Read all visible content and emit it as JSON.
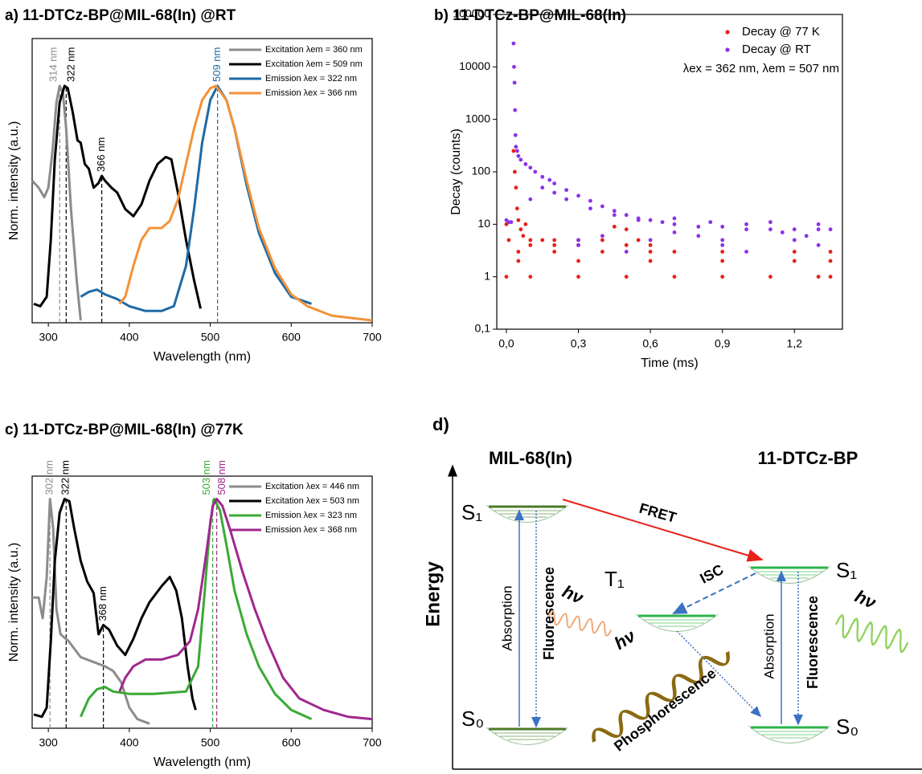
{
  "chart_data": [
    {
      "type": "line",
      "title": "a) 11-DTCz-BP@MIL-68(In) @RT",
      "x_label": "Wavelength (nm)",
      "y_label": "Norm. intensity (a.u.)",
      "xlim": [
        280,
        700
      ],
      "xticks": [
        300,
        400,
        500,
        600,
        700
      ],
      "ylim": [
        0,
        1.2
      ],
      "legend": "upper right",
      "series": [
        {
          "name": "Excitation λem = 360 nm",
          "color": "#8c8c8c",
          "x": [
            280,
            288,
            295,
            300,
            305,
            310,
            314,
            318,
            322,
            328,
            335,
            340
          ],
          "values": [
            0.6,
            0.57,
            0.53,
            0.57,
            0.72,
            0.93,
            1.0,
            0.97,
            0.82,
            0.48,
            0.18,
            0.01
          ]
        },
        {
          "name": "Excitation λem = 509 nm",
          "color": "#000000",
          "x": [
            282,
            290,
            298,
            303,
            308,
            314,
            320,
            324,
            330,
            336,
            340,
            345,
            350,
            356,
            362,
            366,
            370,
            378,
            385,
            395,
            405,
            415,
            425,
            435,
            445,
            452,
            460,
            470,
            480,
            488
          ],
          "values": [
            0.08,
            0.07,
            0.11,
            0.35,
            0.69,
            0.93,
            1.0,
            0.99,
            0.89,
            0.77,
            0.76,
            0.67,
            0.65,
            0.57,
            0.59,
            0.62,
            0.6,
            0.57,
            0.55,
            0.48,
            0.45,
            0.5,
            0.6,
            0.67,
            0.7,
            0.69,
            0.55,
            0.35,
            0.18,
            0.06
          ]
        },
        {
          "name": "Emission λex = 322 nm",
          "color": "#1f6aa5",
          "x": [
            340,
            350,
            360,
            370,
            385,
            400,
            420,
            440,
            455,
            470,
            480,
            490,
            500,
            509,
            520,
            530,
            545,
            560,
            580,
            600,
            625
          ],
          "values": [
            0.11,
            0.13,
            0.14,
            0.12,
            0.1,
            0.07,
            0.05,
            0.05,
            0.07,
            0.24,
            0.48,
            0.76,
            0.94,
            1.0,
            0.94,
            0.82,
            0.58,
            0.38,
            0.21,
            0.11,
            0.08
          ]
        },
        {
          "name": "Emission λex = 366 nm",
          "color": "#f39237",
          "x": [
            388,
            395,
            405,
            415,
            425,
            440,
            450,
            460,
            470,
            480,
            490,
            500,
            507,
            520,
            530,
            545,
            560,
            580,
            600,
            620,
            650,
            700
          ],
          "values": [
            0.08,
            0.11,
            0.24,
            0.35,
            0.4,
            0.4,
            0.43,
            0.52,
            0.67,
            0.82,
            0.94,
            0.99,
            1.0,
            0.94,
            0.82,
            0.6,
            0.4,
            0.23,
            0.12,
            0.07,
            0.03,
            0.01
          ]
        }
      ],
      "annotations": [
        {
          "text": "314 nm",
          "x": 314,
          "y": 1.0,
          "color": "#8c8c8c"
        },
        {
          "text": "322 nm",
          "x": 322,
          "y": 1.0,
          "color": "#000000"
        },
        {
          "text": "366 nm",
          "x": 366,
          "y": 0.62,
          "color": "#000000"
        },
        {
          "text": "509 nm",
          "x": 509,
          "y": 1.0,
          "color": "#1f6aa5"
        }
      ]
    },
    {
      "type": "scatter",
      "title": "b) 11-DTCz-BP@MIL-68(In)",
      "x_label": "Time (ms)",
      "y_label": "Decay (counts)",
      "xlim": [
        -0.04,
        1.4
      ],
      "xticks": [
        {
          "value": 0,
          "label": "0,0"
        },
        {
          "value": 0.3,
          "label": "0,3"
        },
        {
          "value": 0.6,
          "label": "0,6"
        },
        {
          "value": 0.9,
          "label": "0,9"
        },
        {
          "value": 1.2,
          "label": "1,2"
        }
      ],
      "ylim": [
        0.1,
        100000
      ],
      "yscale": "log",
      "yticks": [
        {
          "value": 0.1,
          "label": "0,1"
        },
        1,
        10,
        100,
        1000,
        10000,
        100000
      ],
      "legend": "upper right",
      "note": "λex = 362 nm, λem = 507 nm",
      "series": [
        {
          "name": "Decay @ 77 K",
          "color": "#e8201a",
          "x": [
            0.03,
            0.035,
            0.04,
            0.045,
            0.05,
            0.06,
            0.07,
            0.08,
            0.1,
            0.15,
            0.2,
            0.3,
            0.4,
            0.45,
            0.5,
            0.55,
            0.6,
            0.1,
            0.2,
            0.3,
            0.5,
            0.7,
            0.05,
            0.2,
            0.4,
            0.6,
            0.9,
            1.2,
            1.35,
            0.05,
            0.3,
            0.6,
            0.9,
            1.2,
            1.35,
            0.0,
            0.1,
            0.3,
            0.5,
            0.7,
            0.9,
            1.1,
            1.3,
            1.35,
            0.0,
            0.01
          ],
          "values": [
            250,
            100,
            50,
            20,
            12,
            8,
            6,
            10,
            5,
            5,
            5,
            5,
            5,
            9,
            8,
            5,
            4,
            4,
            4,
            4,
            4,
            3,
            3,
            3,
            3,
            3,
            3,
            3,
            3,
            2,
            2,
            2,
            2,
            2,
            2,
            1,
            1,
            1,
            1,
            1,
            1,
            1,
            1,
            1,
            10,
            5
          ]
        },
        {
          "name": "Decay @ RT",
          "color": "#8b32e6",
          "x": [
            0.03,
            0.032,
            0.034,
            0.036,
            0.038,
            0.04,
            0.045,
            0.05,
            0.06,
            0.08,
            0.1,
            0.12,
            0.15,
            0.18,
            0.2,
            0.25,
            0.3,
            0.35,
            0.4,
            0.45,
            0.5,
            0.55,
            0.6,
            0.65,
            0.7,
            0.8,
            0.9,
            1.0,
            1.1,
            1.2,
            1.3,
            1.35,
            0.0,
            0.01,
            0.02,
            0.3,
            0.6,
            0.9,
            1.2,
            0.3,
            0.9,
            1.3,
            0.5,
            1.0,
            0.4,
            0.8,
            1.25,
            0.7,
            1.15,
            0.1,
            0.15,
            0.2,
            0.25,
            0.35,
            0.45,
            0.55,
            0.7,
            0.85,
            1.0,
            1.1,
            1.3
          ],
          "values": [
            28000,
            10000,
            5000,
            1500,
            500,
            300,
            250,
            200,
            170,
            140,
            120,
            100,
            80,
            70,
            60,
            45,
            35,
            28,
            22,
            18,
            15,
            13,
            12,
            11,
            10,
            9,
            9,
            8,
            8,
            8,
            8,
            8,
            12,
            11,
            11,
            5,
            5,
            5,
            5,
            4,
            4,
            4,
            3,
            3,
            6,
            6,
            6,
            7,
            7,
            30,
            50,
            40,
            30,
            20,
            15,
            12,
            13,
            11,
            10,
            11,
            10
          ]
        }
      ]
    },
    {
      "type": "line",
      "title": "c) 11-DTCz-BP@MIL-68(In) @77K",
      "x_label": "Wavelength (nm)",
      "y_label": "Norm. intensity (a.u.)",
      "xlim": [
        280,
        700
      ],
      "xticks": [
        300,
        400,
        500,
        600,
        700
      ],
      "ylim": [
        0,
        1.1
      ],
      "legend": "upper right",
      "series": [
        {
          "name": "Excitation λex = 446 nm",
          "color": "#8c8c8c",
          "x": [
            280,
            288,
            293,
            298,
            302,
            306,
            310,
            315,
            325,
            340,
            355,
            370,
            380,
            390,
            400,
            410,
            425
          ],
          "values": [
            0.57,
            0.57,
            0.48,
            0.66,
            1.0,
            0.87,
            0.52,
            0.41,
            0.38,
            0.31,
            0.29,
            0.27,
            0.25,
            0.2,
            0.09,
            0.04,
            0.02
          ]
        },
        {
          "name": "Excitation λex = 503 nm",
          "color": "#000000",
          "x": [
            282,
            292,
            298,
            303,
            308,
            314,
            320,
            326,
            332,
            340,
            348,
            356,
            362,
            368,
            375,
            385,
            395,
            405,
            415,
            425,
            440,
            450,
            458,
            465,
            472,
            478,
            482
          ],
          "values": [
            0.06,
            0.05,
            0.09,
            0.38,
            0.73,
            0.94,
            1.0,
            0.99,
            0.87,
            0.73,
            0.64,
            0.59,
            0.41,
            0.45,
            0.43,
            0.36,
            0.32,
            0.39,
            0.48,
            0.55,
            0.62,
            0.66,
            0.6,
            0.48,
            0.27,
            0.13,
            0.08
          ]
        },
        {
          "name": "Emission λex = 323 nm",
          "color": "#3aaa35",
          "x": [
            340,
            350,
            360,
            370,
            380,
            400,
            430,
            470,
            485,
            493,
            500,
            505,
            512,
            520,
            530,
            545,
            560,
            580,
            600,
            625
          ],
          "values": [
            0.05,
            0.13,
            0.17,
            0.18,
            0.16,
            0.15,
            0.15,
            0.16,
            0.27,
            0.59,
            0.9,
            1.0,
            0.95,
            0.8,
            0.6,
            0.41,
            0.27,
            0.15,
            0.08,
            0.04
          ]
        },
        {
          "name": "Emission λex = 368 nm",
          "color": "#a0288e",
          "x": [
            388,
            395,
            405,
            420,
            440,
            460,
            475,
            485,
            495,
            503,
            508,
            515,
            525,
            540,
            555,
            570,
            590,
            610,
            640,
            670,
            700
          ],
          "values": [
            0.16,
            0.22,
            0.27,
            0.3,
            0.3,
            0.32,
            0.38,
            0.52,
            0.76,
            0.97,
            1.0,
            0.97,
            0.86,
            0.68,
            0.52,
            0.38,
            0.22,
            0.13,
            0.08,
            0.05,
            0.04
          ]
        }
      ],
      "annotations": [
        {
          "text": "302 nm",
          "x": 302,
          "y": 1.0,
          "color": "#8c8c8c"
        },
        {
          "text": "322 nm",
          "x": 322,
          "y": 1.0,
          "color": "#000000"
        },
        {
          "text": "368 nm",
          "x": 368,
          "y": 0.45,
          "color": "#000000"
        },
        {
          "text": "503 nm",
          "x": 503,
          "y": 1.0,
          "color": "#3aaa35"
        },
        {
          "text": "508 nm",
          "x": 508,
          "y": 1.0,
          "color": "#a0288e"
        }
      ]
    }
  ],
  "diagram": {
    "label": "d)",
    "left_title": "MIL-68(In)",
    "right_title": "11-DTCz-BP",
    "axis_label": "Energy",
    "left_s1": "S₁",
    "left_s0": "S₀",
    "t1": "T₁",
    "right_s1": "S₁",
    "right_s0": "S₀",
    "fret": "FRET",
    "isc": "ISC",
    "left_absorption": "Absorption",
    "left_fluorescence": "Fluorescence",
    "left_hv": "hν",
    "phos_hv": "hν",
    "phosphorescence": "Phosphorescence",
    "right_absorption": "Absorption",
    "right_fluorescence": "Fluorescence",
    "right_hv": "hν"
  }
}
